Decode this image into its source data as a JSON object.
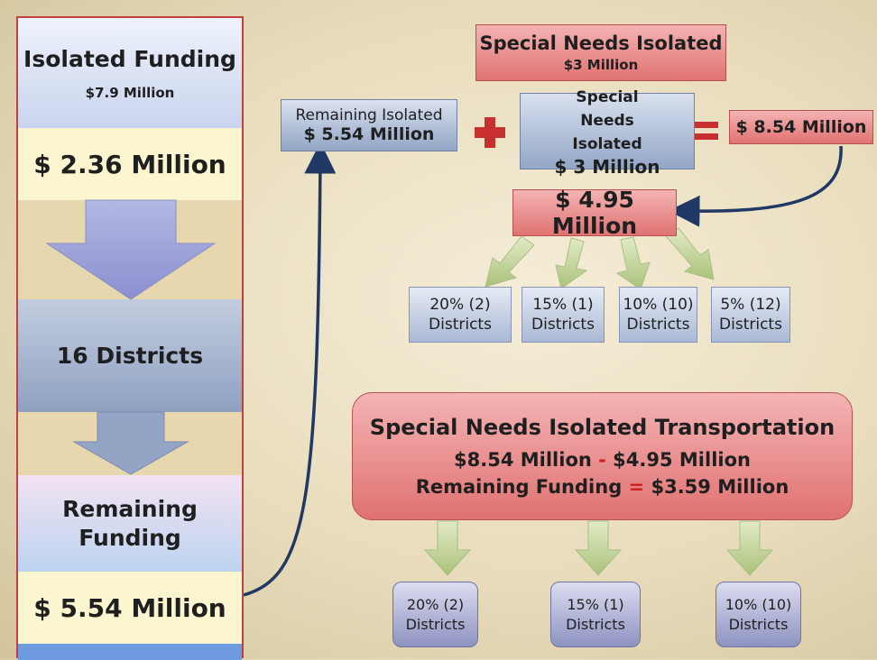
{
  "left_column": {
    "isolated_funding": {
      "title": "Isolated Funding",
      "amount": "$7.9 Million"
    },
    "amount_1": "$ 2.36 Million",
    "districts": "16 Districts",
    "remaining_funding": {
      "title": "Remaining Funding",
      "amount": "$ 5.54 Million"
    }
  },
  "top": {
    "special_needs": {
      "title": "Special Needs Isolated",
      "amount": "$3 Million"
    },
    "remaining_isolated": {
      "title": "Remaining Isolated",
      "amount": "$ 5.54 Million"
    },
    "special_needs_box": {
      "title": "Special Needs Isolated",
      "amount": "$ 3 Million"
    },
    "sum": "$ 8.54 Million",
    "split": "$ 4.95 Million"
  },
  "tiers": [
    {
      "share": "20% (2)",
      "label": "Districts"
    },
    {
      "share": "15% (1)",
      "label": "Districts"
    },
    {
      "share": "10% (10)",
      "label": "Districts"
    },
    {
      "share": "5% (12)",
      "label": "Districts"
    }
  ],
  "transport": {
    "title": "Special Needs Isolated Transportation",
    "line1": {
      "left": "$8.54 Million",
      "op": "-",
      "right": "$4.95 Million"
    },
    "line2": {
      "left": "Remaining Funding",
      "op": "=",
      "right": "$3.59 Million"
    }
  },
  "transport_tiers": [
    {
      "share": "20% (2)",
      "label": "Districts"
    },
    {
      "share": "15% (1)",
      "label": "Districts"
    },
    {
      "share": "10% (10)",
      "label": "Districts"
    }
  ]
}
